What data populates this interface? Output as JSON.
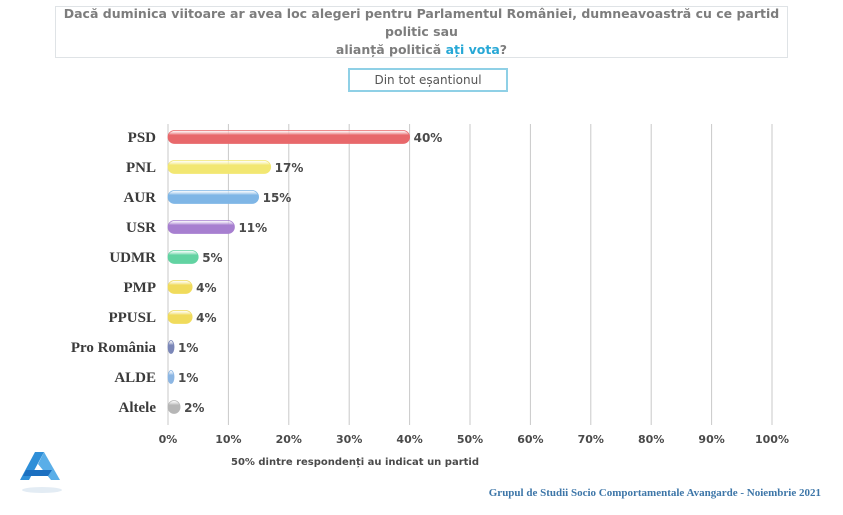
{
  "question": {
    "line1": "Dacă duminica viitoare ar avea loc alegeri pentru Parlamentul României, dumneavoastră cu ce partid politic sau",
    "line2_prefix": "alianță politică ",
    "line2_highlight": "ați vota",
    "line2_suffix": "?"
  },
  "filter": {
    "label": "Din tot eșantionul"
  },
  "chart_data": {
    "type": "bar",
    "orientation": "horizontal",
    "title": "",
    "categories": [
      "PSD",
      "PNL",
      "AUR",
      "USR",
      "UDMR",
      "PMP",
      "PPUSL",
      "Pro România",
      "ALDE",
      "Altele"
    ],
    "values": [
      40,
      17,
      15,
      11,
      5,
      4,
      4,
      1,
      1,
      2
    ],
    "value_labels": [
      "40%",
      "17%",
      "15%",
      "11%",
      "5%",
      "4%",
      "4%",
      "1%",
      "1%",
      "2%"
    ],
    "colors": [
      "#e8686b",
      "#f2e772",
      "#7fb6e6",
      "#a77fd0",
      "#62d3a2",
      "#f0db5c",
      "#f0db5c",
      "#7b87b8",
      "#8cb6e3",
      "#b6b6b6"
    ],
    "xlim": [
      0,
      100
    ],
    "xticks": [
      "0%",
      "10%",
      "20%",
      "30%",
      "40%",
      "50%",
      "60%",
      "70%",
      "80%",
      "90%",
      "100%"
    ],
    "xlabel": "50% dintre respondenți au indicat un partid",
    "grid": true
  },
  "footer": {
    "source": "Grupul de Studii Socio Comportamentale Avangarde",
    "separator": " - ",
    "date": "Noiembrie 2021"
  },
  "logo": {
    "icon": "avangarde-logo",
    "color": "#2f8fd8"
  }
}
